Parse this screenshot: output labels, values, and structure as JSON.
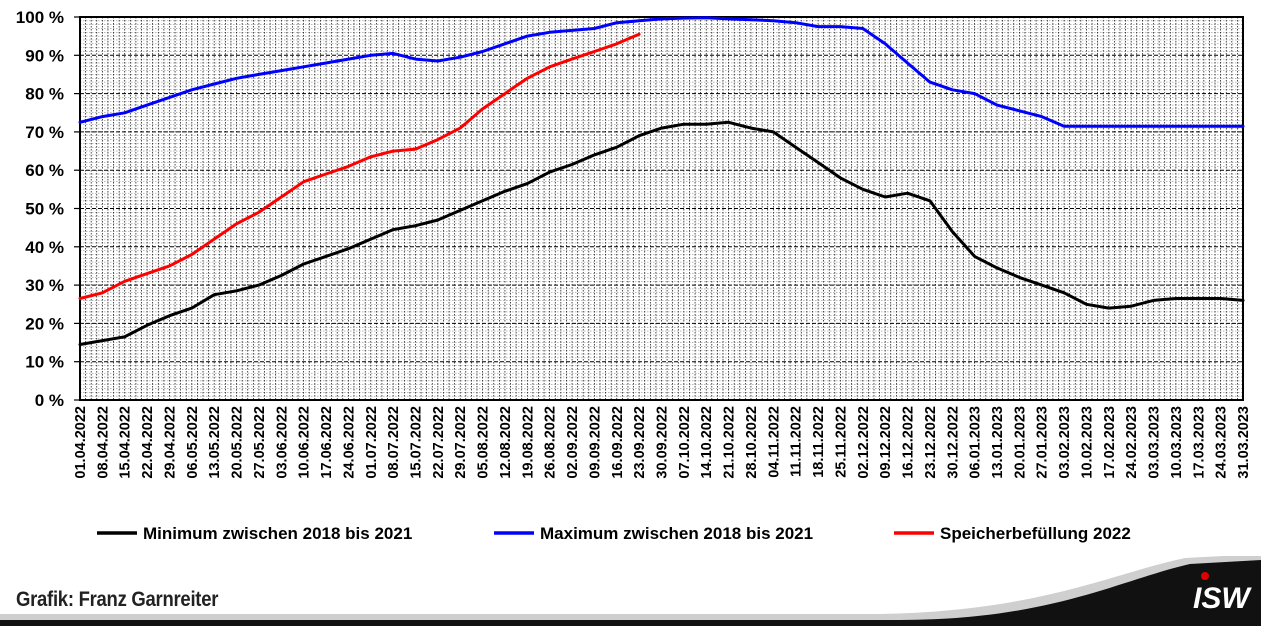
{
  "chart_data": {
    "type": "line",
    "y_ticks": [
      "100 %",
      "90 %",
      "80 %",
      "70 %",
      "60 %",
      "50 %",
      "40 %",
      "30 %",
      "20 %",
      "10 %",
      "0 %"
    ],
    "ylim": [
      0,
      100
    ],
    "x_ticks": [
      "01.04.2022",
      "08.04.2022",
      "15.04.2022",
      "22.04.2022",
      "29.04.2022",
      "06.05.2022",
      "13.05.2022",
      "20.05.2022",
      "27.05.2022",
      "03.06.2022",
      "10.06.2022",
      "17.06.2022",
      "24.06.2022",
      "01.07.2022",
      "08.07.2022",
      "15.07.2022",
      "22.07.2022",
      "29.07.2022",
      "05.08.2022",
      "12.08.2022",
      "19.08.2022",
      "26.08.2022",
      "02.09.2022",
      "09.09.2022",
      "16.09.2022",
      "23.09.2022",
      "30.09.2022",
      "07.10.2022",
      "14.10.2022",
      "21.10.2022",
      "28.10.2022",
      "04.11.2022",
      "11.11.2022",
      "18.11.2022",
      "25.11.2022",
      "02.12.2022",
      "09.12.2022",
      "16.12.2022",
      "23.12.2022",
      "30.12.2022",
      "06.01.2023",
      "13.01.2023",
      "20.01.2023",
      "27.01.2023",
      "03.02.2023",
      "10.02.2023",
      "17.02.2023",
      "24.02.2023",
      "03.03.2023",
      "10.03.2023",
      "17.03.2023",
      "24.03.2023",
      "31.03.2023"
    ],
    "grid": true,
    "legend_position": "bottom",
    "series": [
      {
        "name": "Minimum zwischen 2018 bis 2021",
        "color": "#000000",
        "values": [
          14.5,
          15.5,
          16.5,
          19.5,
          22,
          24,
          27.5,
          28.5,
          30,
          32.5,
          35.5,
          37.5,
          39.5,
          42,
          44.5,
          45.5,
          47,
          49.5,
          52,
          54.5,
          56.5,
          59.5,
          61.5,
          64,
          66,
          69,
          71,
          72,
          72,
          72.5,
          71,
          70,
          66,
          62,
          58,
          55,
          53,
          54,
          52,
          44,
          37.5,
          34.5,
          32,
          30,
          28,
          25,
          24,
          24.5,
          26,
          26.5,
          26.5,
          26.5,
          26
        ]
      },
      {
        "name": "Maximum zwischen 2018 bis 2021",
        "color": "#0000ff",
        "values": [
          72.5,
          74,
          75,
          77,
          79,
          81,
          82.5,
          84,
          85,
          86,
          87,
          88,
          89,
          90,
          90.5,
          89,
          88.5,
          89.5,
          91,
          93,
          95,
          96,
          96.5,
          97,
          98.5,
          99,
          99.5,
          99.7,
          99.8,
          99.5,
          99.3,
          99,
          98.5,
          97.5,
          97.5,
          97,
          93,
          88,
          83,
          81,
          80,
          77,
          75.5,
          74,
          71.5,
          71.5,
          71.5,
          71.5,
          71.5,
          71.5,
          71.5,
          71.5,
          71.5
        ]
      },
      {
        "name": "Speicherbefüllung 2022",
        "color": "#ff0000",
        "values": [
          26.5,
          28,
          31,
          33,
          35,
          38,
          42,
          46,
          49,
          53,
          57,
          59,
          61,
          63.5,
          65,
          65.5,
          68,
          71,
          76,
          80,
          84,
          87,
          89,
          91,
          93,
          95.5,
          null,
          null,
          null,
          null,
          null,
          null,
          null,
          null,
          null,
          null,
          null,
          null,
          null,
          null,
          null,
          null,
          null,
          null,
          null,
          null,
          null,
          null,
          null,
          null,
          null,
          null,
          null
        ]
      }
    ]
  },
  "footer": {
    "credit": "Grafik: Franz Garnreiter",
    "logo_text": "ISW"
  }
}
